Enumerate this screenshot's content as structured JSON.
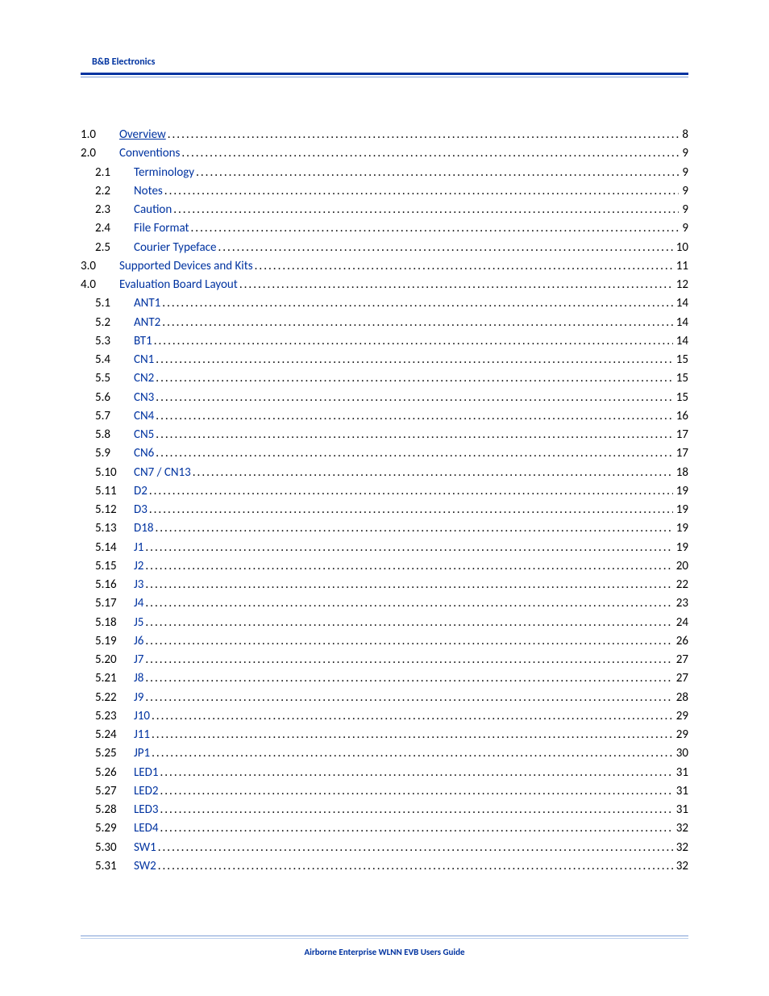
{
  "brand": "B&B Electronics",
  "footer": "Airborne Enterprise WLNN EVB Users Guide",
  "colors": {
    "accent": "#0033a0",
    "rule_light": "#7f9fd6",
    "rule_lighter": "#b9cdeb",
    "text": "#000000",
    "bg": "#ffffff"
  },
  "typography": {
    "body_font": "Calibri",
    "body_size_pt": 11,
    "brand_size_pt": 9,
    "footer_size_pt": 8
  },
  "toc": [
    {
      "num": "1.0",
      "title": "Overview",
      "page": "8",
      "level": 0,
      "underline": true
    },
    {
      "num": "2.0",
      "title": "Conventions",
      "page": "9",
      "level": 0,
      "underline": false
    },
    {
      "num": "2.1",
      "title": "Terminology",
      "page": "9",
      "level": 1,
      "underline": false
    },
    {
      "num": "2.2",
      "title": "Notes",
      "page": "9",
      "level": 1,
      "underline": false
    },
    {
      "num": "2.3",
      "title": "Caution",
      "page": "9",
      "level": 1,
      "underline": false
    },
    {
      "num": "2.4",
      "title": "File Format",
      "page": "9",
      "level": 1,
      "underline": false
    },
    {
      "num": "2.5",
      "title": "Courier Typeface",
      "page": "10",
      "level": 1,
      "underline": false
    },
    {
      "num": "3.0",
      "title": "Supported Devices and Kits",
      "page": "11",
      "level": 0,
      "underline": false
    },
    {
      "num": "4.0",
      "title": "Evaluation Board Layout",
      "page": "12",
      "level": 0,
      "underline": false
    },
    {
      "num": "5.1",
      "title": "ANT1",
      "page": "14",
      "level": 1,
      "underline": false
    },
    {
      "num": "5.2",
      "title": "ANT2",
      "page": "14",
      "level": 1,
      "underline": false
    },
    {
      "num": "5.3",
      "title": "BT1",
      "page": "14",
      "level": 1,
      "underline": false
    },
    {
      "num": "5.4",
      "title": "CN1",
      "page": "15",
      "level": 1,
      "underline": false
    },
    {
      "num": "5.5",
      "title": "CN2",
      "page": "15",
      "level": 1,
      "underline": false
    },
    {
      "num": "5.6",
      "title": "CN3",
      "page": "15",
      "level": 1,
      "underline": false
    },
    {
      "num": "5.7",
      "title": "CN4",
      "page": "16",
      "level": 1,
      "underline": false
    },
    {
      "num": "5.8",
      "title": "CN5",
      "page": "17",
      "level": 1,
      "underline": false
    },
    {
      "num": "5.9",
      "title": "CN6",
      "page": "17",
      "level": 1,
      "underline": false
    },
    {
      "num": "5.10",
      "title": "CN7 / CN13",
      "page": "18",
      "level": 1,
      "underline": false
    },
    {
      "num": "5.11",
      "title": "D2",
      "page": "19",
      "level": 1,
      "underline": false
    },
    {
      "num": "5.12",
      "title": "D3",
      "page": "19",
      "level": 1,
      "underline": false
    },
    {
      "num": "5.13",
      "title": "D18",
      "page": "19",
      "level": 1,
      "underline": false
    },
    {
      "num": "5.14",
      "title": "J1",
      "page": "19",
      "level": 1,
      "underline": false
    },
    {
      "num": "5.15",
      "title": "J2",
      "page": "20",
      "level": 1,
      "underline": false
    },
    {
      "num": "5.16",
      "title": "J3",
      "page": "22",
      "level": 1,
      "underline": false
    },
    {
      "num": "5.17",
      "title": "J4",
      "page": "23",
      "level": 1,
      "underline": false
    },
    {
      "num": "5.18",
      "title": "J5",
      "page": "24",
      "level": 1,
      "underline": false
    },
    {
      "num": "5.19",
      "title": "J6",
      "page": "26",
      "level": 1,
      "underline": false
    },
    {
      "num": "5.20",
      "title": "J7",
      "page": "27",
      "level": 1,
      "underline": false
    },
    {
      "num": "5.21",
      "title": "J8",
      "page": "27",
      "level": 1,
      "underline": false
    },
    {
      "num": "5.22",
      "title": "J9",
      "page": "28",
      "level": 1,
      "underline": false
    },
    {
      "num": "5.23",
      "title": "J10",
      "page": "29",
      "level": 1,
      "underline": false
    },
    {
      "num": "5.24",
      "title": "J11",
      "page": "29",
      "level": 1,
      "underline": false
    },
    {
      "num": "5.25",
      "title": "JP1",
      "page": "30",
      "level": 1,
      "underline": false
    },
    {
      "num": "5.26",
      "title": "LED1",
      "page": "31",
      "level": 1,
      "underline": false
    },
    {
      "num": "5.27",
      "title": "LED2",
      "page": "31",
      "level": 1,
      "underline": false
    },
    {
      "num": "5.28",
      "title": "LED3",
      "page": "31",
      "level": 1,
      "underline": false
    },
    {
      "num": "5.29",
      "title": "LED4",
      "page": "32",
      "level": 1,
      "underline": false
    },
    {
      "num": "5.30",
      "title": "SW1",
      "page": "32",
      "level": 1,
      "underline": false
    },
    {
      "num": "5.31",
      "title": "SW2",
      "page": "32",
      "level": 1,
      "underline": false
    }
  ]
}
